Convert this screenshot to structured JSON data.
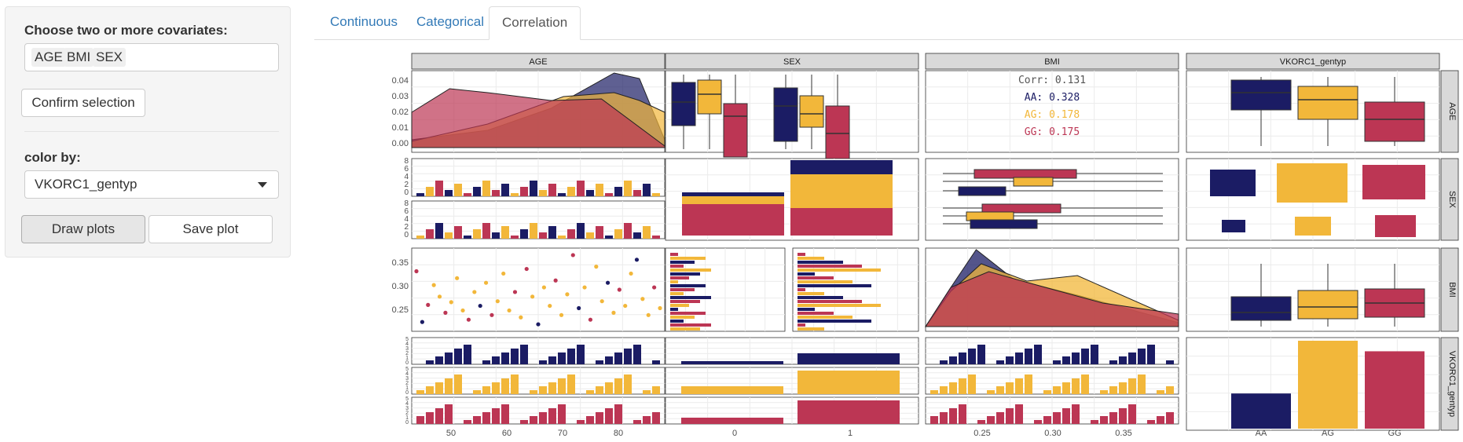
{
  "sidebar": {
    "covariates_label": "Choose two or more covariates:",
    "selected_covariates": [
      "AGE",
      "BMI",
      "SEX"
    ],
    "confirm_button": "Confirm selection",
    "color_by_label": "color by:",
    "color_by_value": "VKORC1_gentyp",
    "draw_button": "Draw plots",
    "save_button": "Save plot"
  },
  "tabs": [
    {
      "label": "Continuous",
      "active": false
    },
    {
      "label": "Categorical",
      "active": false
    },
    {
      "label": "Correlation",
      "active": true
    }
  ],
  "colors": {
    "AA": "#1b1c64",
    "AG": "#f2b73a",
    "GG": "#bc3654"
  },
  "chart_data": {
    "type": "scatter-matrix",
    "variables": [
      "AGE",
      "SEX",
      "BMI",
      "VKORC1_gentyp"
    ],
    "groups": [
      "AA",
      "AG",
      "GG"
    ],
    "correlation": {
      "overall": "Corr: 0.131",
      "AA": "AA: 0.328",
      "AG": "AG: 0.178",
      "GG": "GG: 0.175"
    },
    "age_density_yticks": [
      "0.04",
      "0.03",
      "0.02",
      "0.01",
      "0.00"
    ],
    "sex_hist_yticks": [
      "8",
      "6",
      "4",
      "2",
      "0"
    ],
    "bmi_yticks": [
      "0.35",
      "0.30",
      "0.25"
    ],
    "gentyp_hist_yticks": [
      "5",
      "4",
      "3",
      "2",
      "1",
      "0"
    ],
    "age_xticks": [
      "50",
      "60",
      "70",
      "80"
    ],
    "sex_xticks": [
      "0",
      "1"
    ],
    "bmi_xticks": [
      "0.25",
      "0.30",
      "0.35"
    ],
    "gentyp_xticks": [
      "AA",
      "AG",
      "GG"
    ],
    "gentyp_bars": {
      "AA": 0.4,
      "AG": 1.0,
      "GG": 0.88
    },
    "sex_bars": {
      "0": {
        "AA": 0.5,
        "AG": 1.1,
        "GG": 1.3
      },
      "1": {
        "AA": 2.0,
        "AG": 4.5,
        "GG": 3.5
      }
    },
    "scatter_age_bmi": [
      [
        44,
        0.335,
        "GG"
      ],
      [
        45,
        0.225,
        "AA"
      ],
      [
        46,
        0.262,
        "GG"
      ],
      [
        47,
        0.305,
        "AG"
      ],
      [
        48,
        0.28,
        "AG"
      ],
      [
        49,
        0.245,
        "GG"
      ],
      [
        50,
        0.268,
        "AG"
      ],
      [
        51,
        0.32,
        "AG"
      ],
      [
        52,
        0.25,
        "AG"
      ],
      [
        53,
        0.23,
        "GG"
      ],
      [
        54,
        0.29,
        "AG"
      ],
      [
        55,
        0.26,
        "AA"
      ],
      [
        56,
        0.31,
        "AG"
      ],
      [
        57,
        0.24,
        "GG"
      ],
      [
        58,
        0.27,
        "AG"
      ],
      [
        59,
        0.33,
        "AG"
      ],
      [
        60,
        0.25,
        "AG"
      ],
      [
        61,
        0.29,
        "GG"
      ],
      [
        62,
        0.235,
        "AG"
      ],
      [
        63,
        0.34,
        "GG"
      ],
      [
        64,
        0.28,
        "AG"
      ],
      [
        65,
        0.22,
        "AA"
      ],
      [
        66,
        0.3,
        "AG"
      ],
      [
        67,
        0.26,
        "AG"
      ],
      [
        68,
        0.315,
        "GG"
      ],
      [
        69,
        0.24,
        "AG"
      ],
      [
        70,
        0.285,
        "AG"
      ],
      [
        71,
        0.37,
        "GG"
      ],
      [
        72,
        0.255,
        "AA"
      ],
      [
        73,
        0.3,
        "AG"
      ],
      [
        74,
        0.23,
        "GG"
      ],
      [
        75,
        0.345,
        "AG"
      ],
      [
        76,
        0.27,
        "AG"
      ],
      [
        77,
        0.31,
        "AA"
      ],
      [
        78,
        0.245,
        "AG"
      ],
      [
        79,
        0.295,
        "GG"
      ],
      [
        80,
        0.26,
        "AG"
      ],
      [
        81,
        0.33,
        "AG"
      ],
      [
        82,
        0.36,
        "AA"
      ],
      [
        83,
        0.275,
        "AG"
      ],
      [
        84,
        0.24,
        "AG"
      ],
      [
        85,
        0.3,
        "GG"
      ],
      [
        86,
        0.255,
        "AG"
      ]
    ]
  }
}
